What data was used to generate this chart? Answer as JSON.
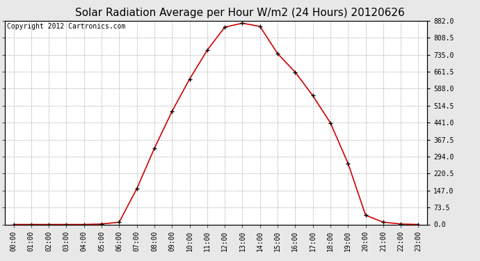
{
  "title": "Solar Radiation Average per Hour W/m2 (24 Hours) 20120626",
  "copyright": "Copyright 2012 Cartronics.com",
  "hours": [
    "00:00",
    "01:00",
    "02:00",
    "03:00",
    "04:00",
    "05:00",
    "06:00",
    "07:00",
    "08:00",
    "09:00",
    "10:00",
    "11:00",
    "12:00",
    "13:00",
    "14:00",
    "15:00",
    "16:00",
    "17:00",
    "18:00",
    "19:00",
    "20:00",
    "21:00",
    "22:00",
    "23:00"
  ],
  "values": [
    0,
    0,
    0,
    0,
    0,
    2,
    10,
    155,
    330,
    490,
    630,
    755,
    855,
    872,
    858,
    740,
    660,
    558,
    440,
    265,
    40,
    10,
    2,
    0
  ],
  "line_color": "#cc0000",
  "marker": "+",
  "marker_color": "#000000",
  "bg_color": "#e8e8e8",
  "plot_bg_color": "#ffffff",
  "grid_color": "#b0b0b0",
  "ylim": [
    0,
    882.0
  ],
  "yticks": [
    0.0,
    73.5,
    147.0,
    220.5,
    294.0,
    367.5,
    441.0,
    514.5,
    588.0,
    661.5,
    735.0,
    808.5,
    882.0
  ],
  "title_fontsize": 11,
  "copyright_fontsize": 7,
  "tick_fontsize": 7,
  "figwidth": 6.9,
  "figheight": 3.75,
  "dpi": 100
}
